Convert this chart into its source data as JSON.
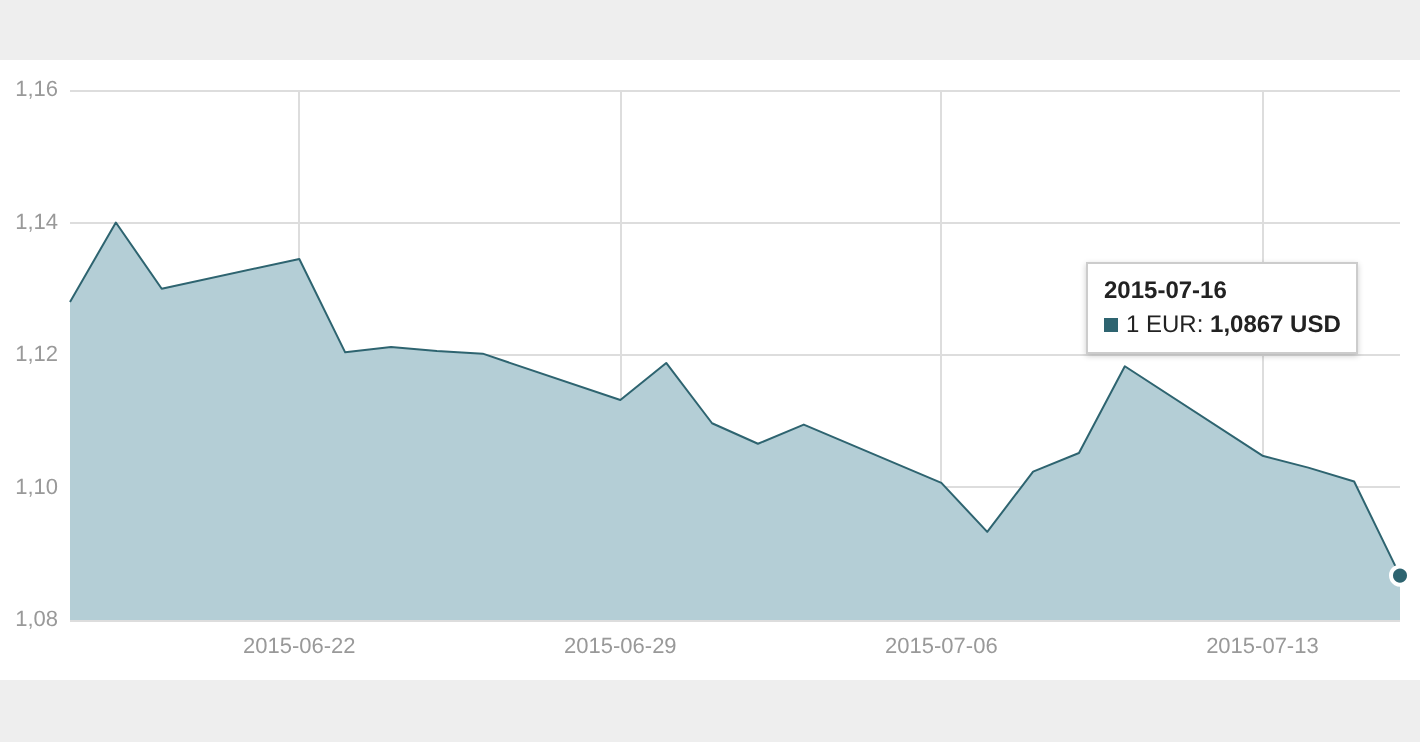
{
  "chart_data": {
    "type": "area",
    "x": [
      "2015-06-17",
      "2015-06-18",
      "2015-06-19",
      "2015-06-22",
      "2015-06-23",
      "2015-06-24",
      "2015-06-25",
      "2015-06-26",
      "2015-06-29",
      "2015-06-30",
      "2015-07-01",
      "2015-07-02",
      "2015-07-03",
      "2015-07-06",
      "2015-07-07",
      "2015-07-08",
      "2015-07-09",
      "2015-07-10",
      "2015-07-13",
      "2015-07-14",
      "2015-07-15",
      "2015-07-16"
    ],
    "series": [
      {
        "color": "#2e6470",
        "values": [
          1.128,
          1.14,
          1.13,
          1.1345,
          1.1204,
          1.1212,
          1.1206,
          1.1202,
          1.1132,
          1.1188,
          1.1097,
          1.1066,
          1.1095,
          1.1007,
          1.0933,
          1.1024,
          1.1052,
          1.1183,
          1.1048,
          1.103,
          1.1009,
          1.0867
        ]
      }
    ],
    "xlim": [
      "2015-06-17",
      "2015-07-16"
    ],
    "xticks": [
      "2015-06-22",
      "2015-06-29",
      "2015-07-06",
      "2015-07-13"
    ],
    "ylim": [
      1.08,
      1.16
    ],
    "yticks": [
      {
        "value": 1.08,
        "label": "1,08"
      },
      {
        "value": 1.1,
        "label": "1,10"
      },
      {
        "value": 1.12,
        "label": "1,12"
      },
      {
        "value": 1.14,
        "label": "1,14"
      },
      {
        "value": 1.16,
        "label": "1,16"
      }
    ],
    "grid": true,
    "marker": "none",
    "annotations": [
      "2015-07-16\n1 EUR: 1,0867 USD"
    ]
  }
}
